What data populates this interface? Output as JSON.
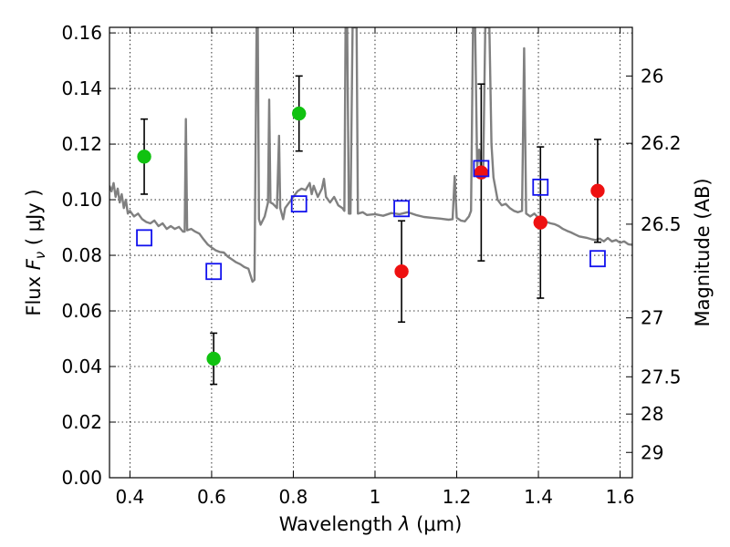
{
  "chart_data": {
    "type": "scatter",
    "xlabel": {
      "prefix": "Wavelength  ",
      "symbol": "λ",
      "units": " (μm)"
    },
    "ylabel": {
      "prefix": "Flux  ",
      "symbol": "F",
      "subscript": "ν",
      "units": "  ( μJy )"
    },
    "ylabel_right": "Magnitude (AB)",
    "xlim": [
      0.35,
      1.63
    ],
    "ylim": [
      0.0,
      0.162
    ],
    "x_ticks": [
      0.4,
      0.6,
      0.8,
      1.0,
      1.2,
      1.4,
      1.6
    ],
    "x_tick_labels": [
      "0.4",
      "0.6",
      "0.8",
      "1",
      "1.2",
      "1.4",
      "1.6"
    ],
    "y_ticks": [
      0.0,
      0.02,
      0.04,
      0.06,
      0.08,
      0.1,
      0.12,
      0.14,
      0.16
    ],
    "y_tick_labels": [
      "0.00",
      "0.02",
      "0.04",
      "0.06",
      "0.08",
      "0.10",
      "0.12",
      "0.14",
      "0.16"
    ],
    "right_ticks": [
      {
        "label": "26",
        "flux": 0.1445
      },
      {
        "label": "26.2",
        "flux": 0.1203
      },
      {
        "label": "26.5",
        "flux": 0.0912
      },
      {
        "label": "27",
        "flux": 0.0575
      },
      {
        "label": "27.5",
        "flux": 0.0363
      },
      {
        "label": "28",
        "flux": 0.0229
      },
      {
        "label": "29",
        "flux": 0.0091
      }
    ],
    "grid": true,
    "series": [
      {
        "name": "observed flux (green)",
        "marker": "circle",
        "color": "#11c211",
        "points": [
          {
            "x": 0.435,
            "y": 0.1155,
            "err": 0.0135
          },
          {
            "x": 0.605,
            "y": 0.0428,
            "err": 0.0092
          },
          {
            "x": 0.814,
            "y": 0.131,
            "err": 0.0135
          }
        ]
      },
      {
        "name": "observed flux (red)",
        "marker": "circle",
        "color": "#ee1111",
        "points": [
          {
            "x": 1.065,
            "y": 0.0742,
            "err": 0.0182
          },
          {
            "x": 1.26,
            "y": 0.1098,
            "err": 0.0318
          },
          {
            "x": 1.405,
            "y": 0.0918,
            "err": 0.0272
          },
          {
            "x": 1.545,
            "y": 0.1032,
            "err": 0.0185
          }
        ]
      },
      {
        "name": "model photometry",
        "marker": "open-square",
        "color": "#1111ee",
        "points": [
          {
            "x": 0.435,
            "y": 0.0863
          },
          {
            "x": 0.605,
            "y": 0.0742
          },
          {
            "x": 0.814,
            "y": 0.0985
          },
          {
            "x": 1.065,
            "y": 0.0968
          },
          {
            "x": 1.26,
            "y": 0.1112
          },
          {
            "x": 1.405,
            "y": 0.1045
          },
          {
            "x": 1.545,
            "y": 0.0788
          }
        ]
      }
    ],
    "model_spectrum": {
      "color": "#808080",
      "points": [
        [
          0.35,
          0.105
        ],
        [
          0.355,
          0.103
        ],
        [
          0.36,
          0.106
        ],
        [
          0.365,
          0.101
        ],
        [
          0.37,
          0.104
        ],
        [
          0.375,
          0.099
        ],
        [
          0.38,
          0.102
        ],
        [
          0.385,
          0.097
        ],
        [
          0.39,
          0.1
        ],
        [
          0.395,
          0.095
        ],
        [
          0.4,
          0.096
        ],
        [
          0.41,
          0.094
        ],
        [
          0.42,
          0.095
        ],
        [
          0.43,
          0.093
        ],
        [
          0.44,
          0.092
        ],
        [
          0.45,
          0.0915
        ],
        [
          0.46,
          0.0925
        ],
        [
          0.47,
          0.0905
        ],
        [
          0.48,
          0.0915
        ],
        [
          0.49,
          0.0895
        ],
        [
          0.5,
          0.0905
        ],
        [
          0.51,
          0.0895
        ],
        [
          0.52,
          0.0902
        ],
        [
          0.53,
          0.0885
        ],
        [
          0.534,
          0.0885
        ],
        [
          0.537,
          0.129
        ],
        [
          0.54,
          0.089
        ],
        [
          0.55,
          0.0895
        ],
        [
          0.56,
          0.0885
        ],
        [
          0.57,
          0.0878
        ],
        [
          0.58,
          0.0858
        ],
        [
          0.59,
          0.084
        ],
        [
          0.6,
          0.0828
        ],
        [
          0.61,
          0.0818
        ],
        [
          0.62,
          0.0812
        ],
        [
          0.63,
          0.081
        ],
        [
          0.64,
          0.0795
        ],
        [
          0.65,
          0.0785
        ],
        [
          0.66,
          0.0775
        ],
        [
          0.67,
          0.0768
        ],
        [
          0.68,
          0.0758
        ],
        [
          0.69,
          0.0752
        ],
        [
          0.7,
          0.0705
        ],
        [
          0.705,
          0.0712
        ],
        [
          0.71,
          0.162
        ],
        [
          0.713,
          0.162
        ],
        [
          0.716,
          0.093
        ],
        [
          0.72,
          0.091
        ],
        [
          0.73,
          0.094
        ],
        [
          0.738,
          0.099
        ],
        [
          0.741,
          0.136
        ],
        [
          0.744,
          0.099
        ],
        [
          0.75,
          0.0985
        ],
        [
          0.76,
          0.097
        ],
        [
          0.765,
          0.123
        ],
        [
          0.768,
          0.097
        ],
        [
          0.775,
          0.093
        ],
        [
          0.78,
          0.097
        ],
        [
          0.79,
          0.099
        ],
        [
          0.8,
          0.101
        ],
        [
          0.81,
          0.103
        ],
        [
          0.82,
          0.104
        ],
        [
          0.83,
          0.1035
        ],
        [
          0.84,
          0.106
        ],
        [
          0.845,
          0.102
        ],
        [
          0.85,
          0.105
        ],
        [
          0.86,
          0.101
        ],
        [
          0.87,
          0.104
        ],
        [
          0.875,
          0.1075
        ],
        [
          0.88,
          0.101
        ],
        [
          0.89,
          0.099
        ],
        [
          0.9,
          0.101
        ],
        [
          0.91,
          0.098
        ],
        [
          0.92,
          0.097
        ],
        [
          0.925,
          0.096
        ],
        [
          0.928,
          0.162
        ],
        [
          0.932,
          0.162
        ],
        [
          0.936,
          0.095
        ],
        [
          0.94,
          0.095
        ],
        [
          0.945,
          0.162
        ],
        [
          0.95,
          0.162
        ],
        [
          0.955,
          0.162
        ],
        [
          0.958,
          0.095
        ],
        [
          0.97,
          0.0955
        ],
        [
          0.98,
          0.0945
        ],
        [
          1.0,
          0.0948
        ],
        [
          1.02,
          0.0942
        ],
        [
          1.04,
          0.0952
        ],
        [
          1.06,
          0.0948
        ],
        [
          1.08,
          0.0955
        ],
        [
          1.1,
          0.0945
        ],
        [
          1.12,
          0.0938
        ],
        [
          1.14,
          0.0935
        ],
        [
          1.16,
          0.0932
        ],
        [
          1.18,
          0.0928
        ],
        [
          1.19,
          0.093
        ],
        [
          1.195,
          0.1085
        ],
        [
          1.2,
          0.0935
        ],
        [
          1.21,
          0.0925
        ],
        [
          1.22,
          0.0922
        ],
        [
          1.23,
          0.094
        ],
        [
          1.235,
          0.096
        ],
        [
          1.24,
          0.162
        ],
        [
          1.245,
          0.162
        ],
        [
          1.25,
          0.112
        ],
        [
          1.255,
          0.118
        ],
        [
          1.26,
          0.111
        ],
        [
          1.265,
          0.112
        ],
        [
          1.27,
          0.162
        ],
        [
          1.28,
          0.162
        ],
        [
          1.285,
          0.12
        ],
        [
          1.29,
          0.108
        ],
        [
          1.3,
          0.1
        ],
        [
          1.31,
          0.098
        ],
        [
          1.32,
          0.0985
        ],
        [
          1.33,
          0.097
        ],
        [
          1.34,
          0.096
        ],
        [
          1.35,
          0.0955
        ],
        [
          1.36,
          0.096
        ],
        [
          1.365,
          0.1545
        ],
        [
          1.37,
          0.095
        ],
        [
          1.38,
          0.094
        ],
        [
          1.39,
          0.095
        ],
        [
          1.4,
          0.0935
        ],
        [
          1.41,
          0.0925
        ],
        [
          1.42,
          0.092
        ],
        [
          1.43,
          0.0915
        ],
        [
          1.44,
          0.0912
        ],
        [
          1.45,
          0.0905
        ],
        [
          1.46,
          0.0895
        ],
        [
          1.47,
          0.0888
        ],
        [
          1.48,
          0.0882
        ],
        [
          1.49,
          0.0875
        ],
        [
          1.5,
          0.0868
        ],
        [
          1.51,
          0.0865
        ],
        [
          1.52,
          0.0862
        ],
        [
          1.53,
          0.0858
        ],
        [
          1.54,
          0.0855
        ],
        [
          1.55,
          0.086
        ],
        [
          1.56,
          0.085
        ],
        [
          1.57,
          0.0862
        ],
        [
          1.58,
          0.085
        ],
        [
          1.59,
          0.0855
        ],
        [
          1.6,
          0.0845
        ],
        [
          1.61,
          0.085
        ],
        [
          1.62,
          0.084
        ],
        [
          1.63,
          0.0838
        ]
      ]
    }
  }
}
